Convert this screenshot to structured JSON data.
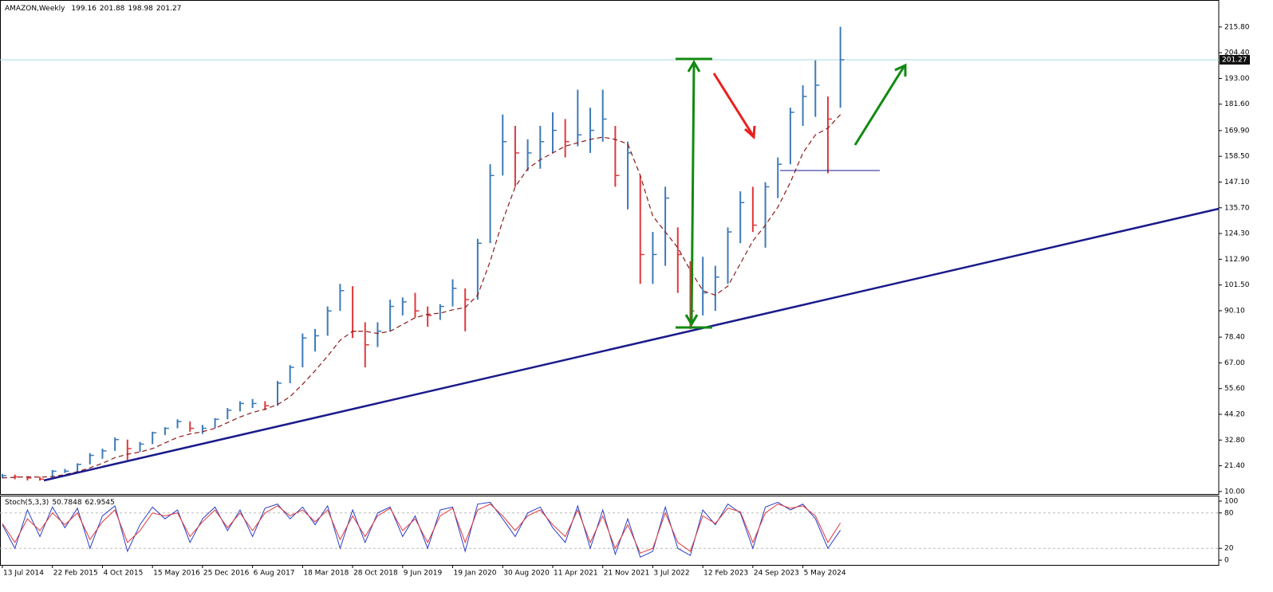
{
  "chart_data": [
    {
      "type": "ohlc",
      "title": "AMAZON,Weekly",
      "header_values": [
        199.16,
        201.88,
        198.98,
        201.27
      ],
      "x": [
        0,
        8,
        16,
        24,
        32,
        40,
        48,
        56,
        64,
        72,
        80,
        88,
        96,
        104,
        112,
        120,
        128,
        136,
        144,
        152,
        160,
        168,
        176,
        184,
        192,
        200,
        208,
        216,
        224,
        232,
        240,
        248,
        256,
        264,
        272,
        280,
        288,
        296,
        304,
        312,
        320,
        328,
        336,
        344,
        352,
        360,
        368,
        376,
        384,
        392,
        400,
        408,
        416,
        424,
        432,
        440,
        448,
        456,
        464,
        472,
        480,
        488,
        496,
        504,
        512,
        520,
        528,
        536
      ],
      "high": [
        17.8,
        17.5,
        16.8,
        16.5,
        19.5,
        20,
        22.5,
        27,
        29,
        34,
        33,
        32,
        36.5,
        38.5,
        42,
        41,
        39.5,
        42.5,
        47,
        50,
        51,
        50,
        59,
        66,
        80,
        82,
        92,
        102,
        101,
        85,
        85,
        95,
        96,
        98,
        92,
        93,
        104,
        100,
        122,
        155,
        177,
        172,
        166,
        172,
        178,
        175,
        188,
        180,
        188,
        172,
        165,
        150,
        125,
        145,
        127,
        112,
        114,
        110,
        127,
        143,
        145,
        147,
        158,
        180,
        190,
        201,
        185,
        215.9
      ],
      "low": [
        16,
        15.4,
        14.9,
        14.8,
        15.8,
        18.2,
        18.8,
        22,
        24.5,
        28,
        24,
        27.5,
        31,
        35,
        38,
        36.5,
        35.5,
        38,
        42,
        45.5,
        47,
        46,
        48,
        58,
        65,
        72,
        79,
        90,
        78,
        65,
        74,
        81,
        88,
        87,
        83,
        86,
        92,
        81,
        95,
        120,
        150,
        145,
        152,
        153,
        160,
        158,
        163,
        160,
        165,
        145,
        135,
        102,
        102,
        110,
        98,
        82,
        88,
        90,
        102,
        120,
        125,
        118,
        140,
        155,
        172,
        176,
        151,
        180
      ],
      "close": [
        17,
        16.5,
        16,
        15.5,
        19,
        19,
        22,
        26,
        28,
        33,
        29,
        31,
        36,
        38,
        41,
        38,
        38,
        42,
        46,
        49,
        49,
        48,
        58,
        65,
        78,
        79,
        90,
        99,
        81,
        75,
        81,
        92,
        94,
        90,
        88,
        92,
        100,
        95,
        120,
        150,
        165,
        160,
        160,
        165,
        170,
        165,
        168,
        170,
        175,
        150,
        160,
        115,
        115,
        140,
        115,
        90,
        98,
        105,
        125,
        138,
        128,
        145,
        155,
        178,
        185,
        190,
        175,
        201.27
      ],
      "up_color": "#3d7ab8",
      "down_color": "#e0383c",
      "ma": {
        "color": "#8b1a1a",
        "values": [
          16,
          16.3,
          16.5,
          16.4,
          16.6,
          17.5,
          18.8,
          20.5,
          22.5,
          25,
          26.5,
          27.5,
          29,
          31.5,
          34,
          35.5,
          36.5,
          38,
          40.5,
          43,
          45,
          46.5,
          48.5,
          52,
          57.5,
          63.5,
          70,
          77,
          81,
          81,
          80,
          81,
          84,
          87,
          88.5,
          89,
          90.5,
          91.5,
          97,
          112,
          130,
          145,
          153,
          157,
          160,
          163,
          164.5,
          166,
          167,
          166,
          164,
          150,
          132,
          125,
          118,
          108,
          99,
          97,
          101,
          111,
          121,
          128,
          136,
          147,
          160,
          168,
          171,
          177
        ]
      },
      "xlim": [
        0,
        778
      ],
      "ylim": [
        8.9,
        227.4
      ],
      "yticks": [
        {
          "value": 10,
          "label": "10.00"
        },
        {
          "value": 21.4,
          "label": "21.40"
        },
        {
          "value": 32.8,
          "label": "32.80"
        },
        {
          "value": 44.2,
          "label": "44.20"
        },
        {
          "value": 55.6,
          "label": "55.60"
        },
        {
          "value": 67,
          "label": "67.00"
        },
        {
          "value": 78.4,
          "label": "78.40"
        },
        {
          "value": 90.1,
          "label": "90.10"
        },
        {
          "value": 101.5,
          "label": "101.50"
        },
        {
          "value": 112.9,
          "label": "112.90"
        },
        {
          "value": 124.3,
          "label": "124.30"
        },
        {
          "value": 135.7,
          "label": "135.70"
        },
        {
          "value": 147.1,
          "label": "147.10"
        },
        {
          "value": 158.5,
          "label": "158.50"
        },
        {
          "value": 169.9,
          "label": "169.90"
        },
        {
          "value": 181.6,
          "label": "181.60"
        },
        {
          "value": 193,
          "label": "193.00"
        },
        {
          "value": 204.4,
          "label": "204.40"
        },
        {
          "value": 215.8,
          "label": "215.80"
        }
      ],
      "price_line_color": "#a8dce4"
    },
    {
      "type": "line",
      "title": "Stoch(5,3,3)",
      "header_values": [
        50.7848,
        62.9545
      ],
      "x": [
        0,
        8,
        16,
        24,
        32,
        40,
        48,
        56,
        64,
        72,
        80,
        88,
        96,
        104,
        112,
        120,
        128,
        136,
        144,
        152,
        160,
        168,
        176,
        184,
        192,
        200,
        208,
        216,
        224,
        232,
        240,
        248,
        256,
        264,
        272,
        280,
        288,
        296,
        304,
        312,
        320,
        328,
        336,
        344,
        352,
        360,
        368,
        376,
        384,
        392,
        400,
        408,
        416,
        424,
        432,
        440,
        448,
        456,
        464,
        472,
        480,
        488,
        496,
        504,
        512,
        520,
        528,
        536
      ],
      "series": [
        {
          "color": "#2a3fc8",
          "values": [
            60,
            20,
            85,
            40,
            90,
            55,
            88,
            20,
            75,
            92,
            15,
            60,
            90,
            70,
            85,
            30,
            70,
            90,
            50,
            85,
            40,
            88,
            95,
            70,
            90,
            60,
            92,
            20,
            85,
            30,
            80,
            90,
            40,
            75,
            20,
            85,
            90,
            15,
            95,
            98,
            70,
            40,
            80,
            90,
            55,
            30,
            92,
            20,
            85,
            10,
            70,
            5,
            15,
            90,
            20,
            8,
            85,
            60,
            95,
            80,
            20,
            90,
            98,
            85,
            95,
            70,
            20,
            50.7848
          ]
        },
        {
          "color": "#e0383c",
          "values": [
            62,
            30,
            70,
            50,
            80,
            60,
            80,
            35,
            65,
            85,
            30,
            50,
            80,
            75,
            80,
            40,
            65,
            85,
            55,
            80,
            50,
            80,
            92,
            75,
            85,
            65,
            85,
            35,
            75,
            40,
            75,
            88,
            50,
            70,
            30,
            75,
            88,
            30,
            85,
            95,
            75,
            50,
            75,
            85,
            60,
            40,
            85,
            30,
            75,
            20,
            60,
            12,
            20,
            80,
            30,
            15,
            75,
            62,
            88,
            82,
            30,
            80,
            95,
            88,
            92,
            75,
            30,
            62.9545
          ]
        }
      ],
      "xlim": [
        0,
        778
      ],
      "ylim": [
        -8,
        108
      ],
      "yticks": [
        0,
        20,
        80,
        100
      ],
      "levels": [
        20,
        80
      ],
      "xticks": [
        {
          "value": 0,
          "label": "13 Jul 2014"
        },
        {
          "value": 32,
          "label": "22 Feb 2015"
        },
        {
          "value": 64,
          "label": "4 Oct 2015"
        },
        {
          "value": 96,
          "label": "15 May 2016"
        },
        {
          "value": 128,
          "label": "25 Dec 2016"
        },
        {
          "value": 160,
          "label": "6 Aug 2017"
        },
        {
          "value": 192,
          "label": "18 Mar 2018"
        },
        {
          "value": 224,
          "label": "28 Oct 2018"
        },
        {
          "value": 256,
          "label": "9 Jun 2019"
        },
        {
          "value": 288,
          "label": "19 Jan 2020"
        },
        {
          "value": 320,
          "label": "30 Aug 2020"
        },
        {
          "value": 352,
          "label": "11 Apr 2021"
        },
        {
          "value": 384,
          "label": "21 Nov 2021"
        },
        {
          "value": 416,
          "label": "3 Jul 2022"
        },
        {
          "value": 448,
          "label": "12 Feb 2023"
        },
        {
          "value": 480,
          "label": "24 Sep 2023"
        },
        {
          "value": 512,
          "label": "5 May 2024"
        }
      ]
    }
  ]
}
